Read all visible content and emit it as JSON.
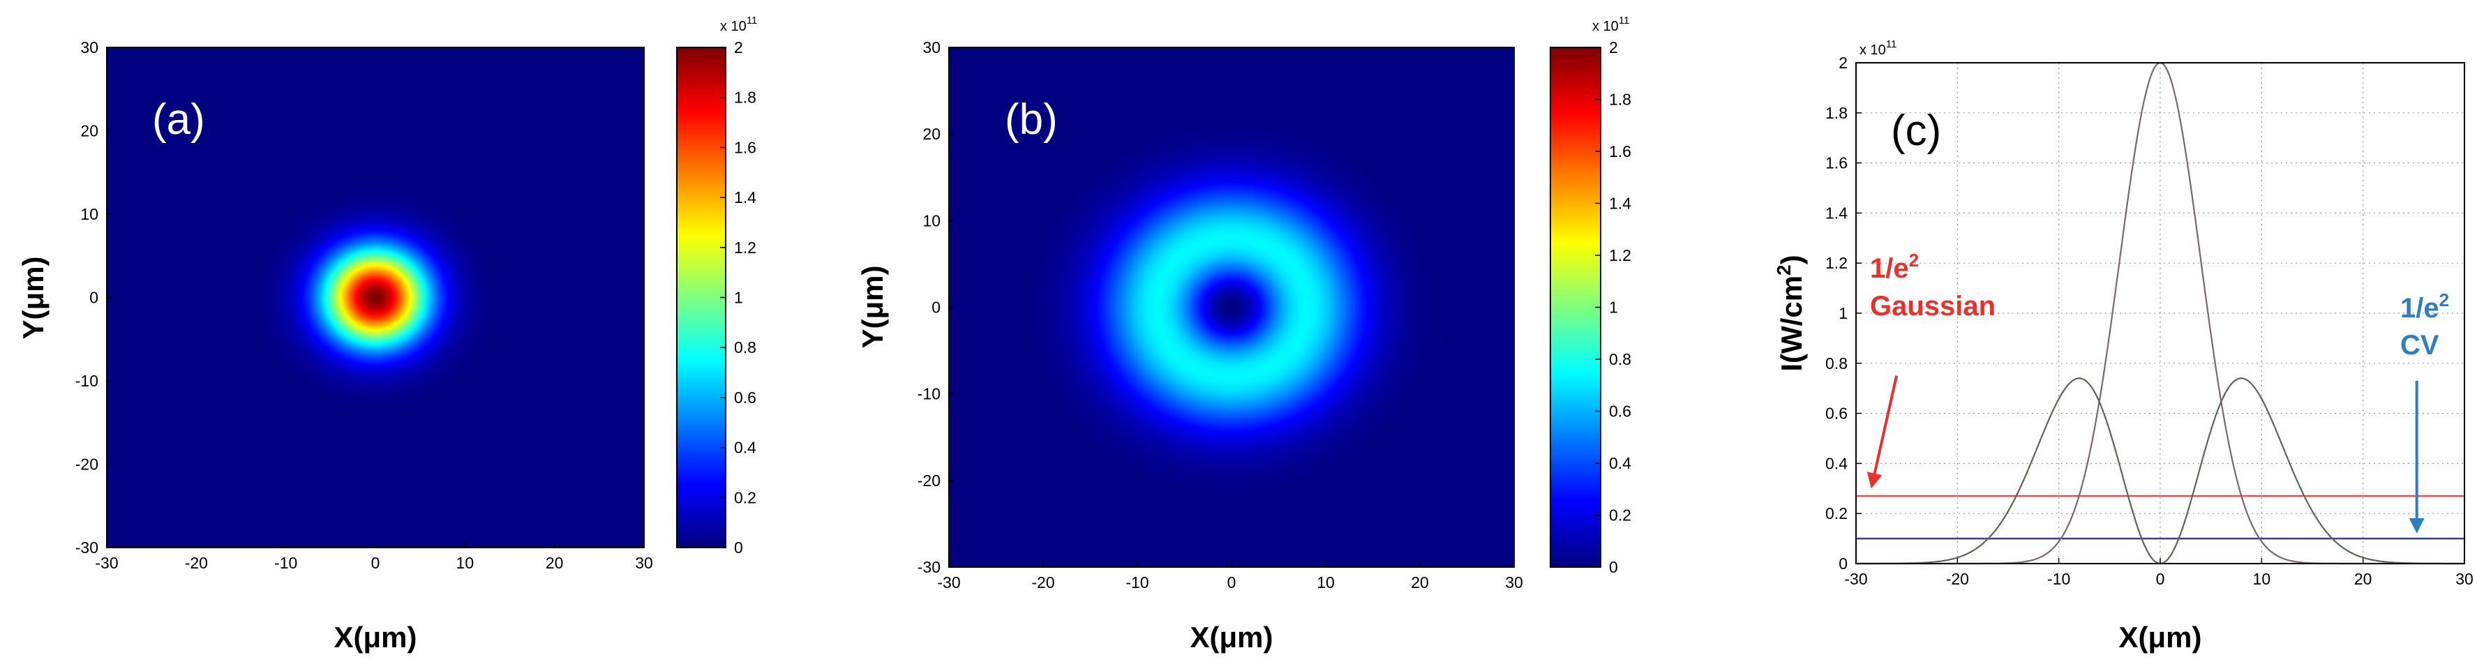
{
  "colors": {
    "gaussian_threshold": "#e05050",
    "cv_threshold": "#3a3aa0",
    "gaussian_curve": "#6d6d6d",
    "cv_curve": "#4a6a4a",
    "arrow_red": "#e8312a",
    "arrow_blue": "#2f7fbf",
    "colormap": "jet"
  },
  "chart_data": [
    {
      "type": "heatmap",
      "panel_label": "(a)",
      "field": "gaussian",
      "xlabel": "X(μm)",
      "ylabel": "Y(μm)",
      "xlim": [
        -30,
        30
      ],
      "ylim": [
        -30,
        30
      ],
      "xticks": [
        -30,
        -20,
        -10,
        0,
        10,
        20,
        30
      ],
      "yticks": [
        -30,
        -20,
        -10,
        0,
        10,
        20,
        30
      ],
      "peak_intensity": 200000000000.0,
      "beam_radius_um": 8,
      "colorbar": {
        "min": 0,
        "max": 2,
        "ticks": [
          0,
          0.2,
          0.4,
          0.6,
          0.8,
          1,
          1.2,
          1.4,
          1.6,
          1.8,
          2
        ],
        "scale_label": "x 10",
        "scale_exponent": "11"
      }
    },
    {
      "type": "heatmap",
      "panel_label": "(b)",
      "field": "cv",
      "xlabel": "X(μm)",
      "ylabel": "Y(μm)",
      "xlim": [
        -30,
        30
      ],
      "ylim": [
        -30,
        30
      ],
      "xticks": [
        -30,
        -20,
        -10,
        0,
        10,
        20,
        30
      ],
      "yticks": [
        -30,
        -20,
        -10,
        0,
        10,
        20,
        30
      ],
      "peak_intensity": 74000000000.0,
      "beam_radius_um": 11.3,
      "colorbar": {
        "min": 0,
        "max": 2,
        "ticks": [
          0,
          0.2,
          0.4,
          0.6,
          0.8,
          1,
          1.2,
          1.4,
          1.6,
          1.8,
          2
        ],
        "scale_label": "x 10",
        "scale_exponent": "11"
      }
    },
    {
      "type": "line",
      "panel_label": "(c)",
      "xlabel": "X(μm)",
      "ylabel": "I(W/cm",
      "ylabel_sup": "2",
      "ylabel_end": ")",
      "xlim": [
        -30,
        30
      ],
      "ylim": [
        0,
        2
      ],
      "xticks": [
        -30,
        -20,
        -10,
        0,
        10,
        20,
        30
      ],
      "yticks": [
        0,
        0.2,
        0.4,
        0.6,
        0.8,
        1,
        1.2,
        1.4,
        1.6,
        1.8,
        2
      ],
      "y_scale_label": "x 10",
      "y_scale_exponent": "11",
      "grid": true,
      "series": [
        {
          "id": "gaussian",
          "peak": 2.0,
          "center": 0,
          "waist_um": 8
        },
        {
          "id": "cv",
          "peak": 0.74,
          "lobe_positions": [
            -8,
            8
          ],
          "waist_um": 11.3
        }
      ],
      "thresholds": [
        {
          "id": "gaussian",
          "y": 0.27
        },
        {
          "id": "cv",
          "y": 0.1
        }
      ],
      "annotations": [
        {
          "id": "gaussian",
          "line1": "1/e",
          "sup": "2",
          "line2": "Gaussian",
          "arrow_from": [
            -26,
            0.75
          ],
          "arrow_to": [
            -28.5,
            0.3
          ]
        },
        {
          "id": "cv",
          "line1": "1/e",
          "sup": "2",
          "line2": "CV",
          "arrow_from": [
            25.3,
            0.73
          ],
          "arrow_to": [
            25.3,
            0.12
          ]
        }
      ]
    }
  ]
}
